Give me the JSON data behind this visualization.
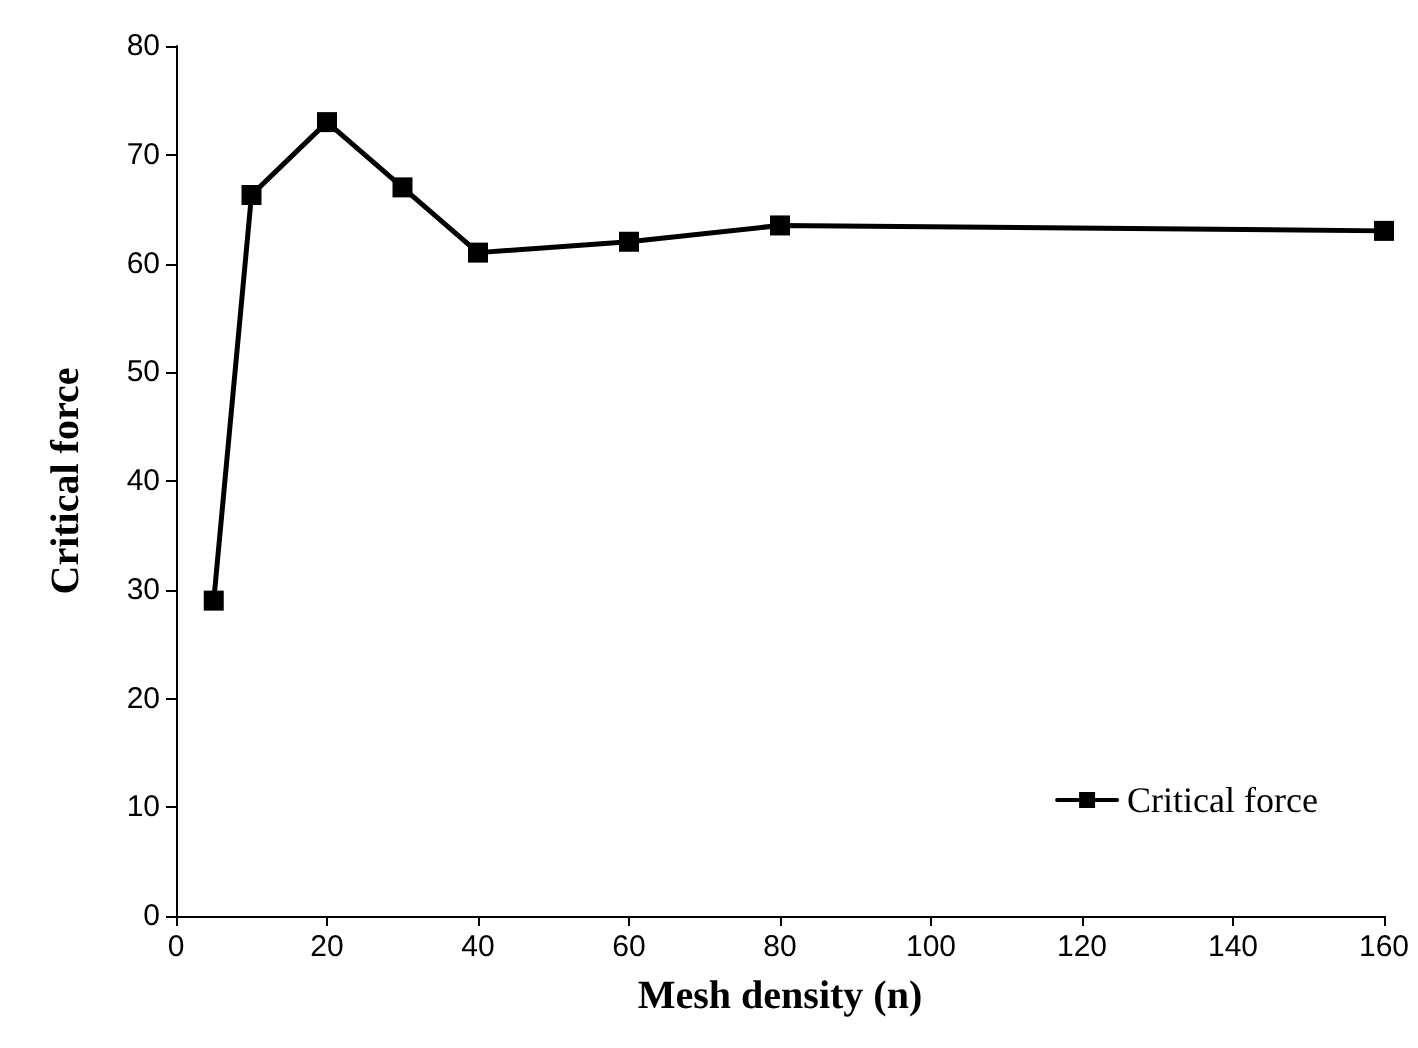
{
  "chart_data": {
    "type": "line",
    "xlabel": "Mesh density (n)",
    "ylabel": "Critical force",
    "series": [
      {
        "name": "Critical force",
        "color": "#000000",
        "x": [
          5,
          10,
          20,
          30,
          40,
          60,
          80,
          160
        ],
        "values": [
          29,
          66.3,
          73,
          67,
          61,
          62,
          63.5,
          63
        ]
      }
    ],
    "xlim": [
      0,
      160
    ],
    "xticks": [
      0,
      20,
      40,
      60,
      80,
      100,
      120,
      140,
      160
    ],
    "ylim": [
      0,
      80
    ],
    "yticks": [
      0,
      10,
      20,
      30,
      40,
      50,
      60,
      70,
      80
    ],
    "grid": false,
    "legend": "bottom right",
    "marker": "square",
    "line_style": "solid"
  }
}
